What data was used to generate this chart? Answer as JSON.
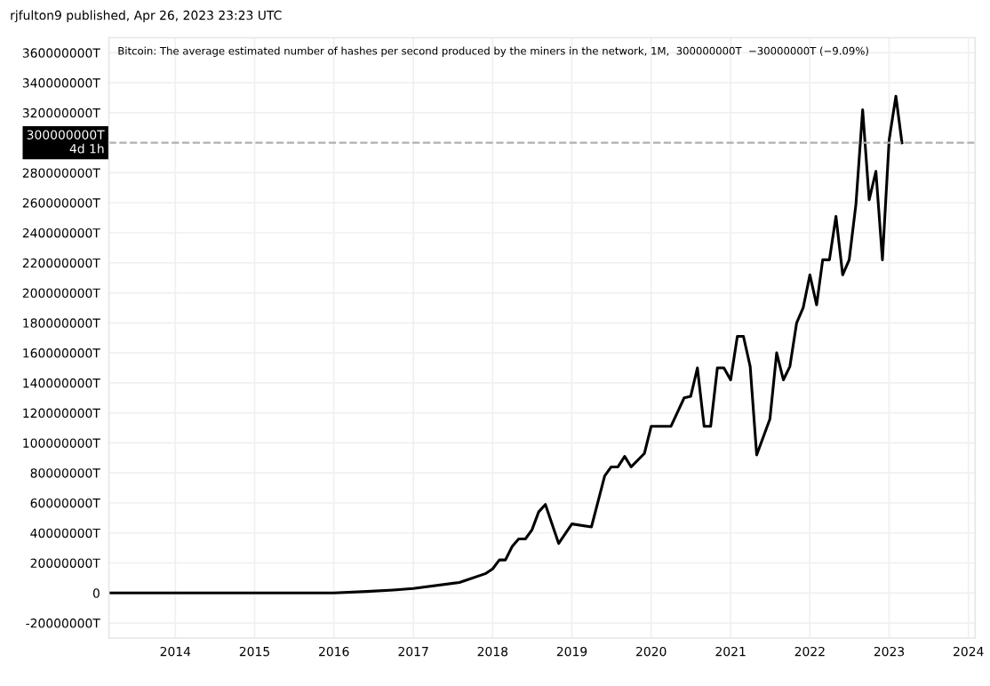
{
  "chart_data": {
    "type": "line",
    "title": "Bitcoin: The average estimated number of hashes per second produced by the miners in the network, 1M,  300000000T  −30000000T (−9.09%)",
    "annotations": [
      "rjfulton9 published, Apr 26, 2023 23:23 UTC"
    ],
    "x": [
      "2013-03",
      "2014-01",
      "2015-01",
      "2016-01",
      "2016-06",
      "2016-10",
      "2017-01",
      "2017-08",
      "2017-12",
      "2018-01",
      "2018-02",
      "2018-03",
      "2018-04",
      "2018-05",
      "2018-06",
      "2018-07",
      "2018-08",
      "2018-09",
      "2018-11",
      "2019-01",
      "2019-04",
      "2019-06",
      "2019-07",
      "2019-08",
      "2019-09",
      "2019-10",
      "2019-12",
      "2020-01",
      "2020-04",
      "2020-06",
      "2020-07",
      "2020-08",
      "2020-09",
      "2020-10",
      "2020-11",
      "2020-12",
      "2021-01",
      "2021-02",
      "2021-03",
      "2021-04",
      "2021-05",
      "2021-07",
      "2021-08",
      "2021-09",
      "2021-10",
      "2021-11",
      "2021-12",
      "2022-01",
      "2022-02",
      "2022-03",
      "2022-04",
      "2022-05",
      "2022-06",
      "2022-07",
      "2022-08",
      "2022-09",
      "2022-10",
      "2022-11",
      "2022-12",
      "2023-01",
      "2023-02",
      "2023-03"
    ],
    "series": [
      {
        "color": "#000000",
        "values": [
          0,
          0,
          0,
          0,
          1000000,
          2000000,
          3000000,
          7000000,
          13000000,
          16000000,
          22000000,
          22000000,
          31000000,
          36000000,
          36000000,
          42000000,
          54000000,
          59000000,
          33000000,
          46000000,
          44000000,
          78000000,
          84000000,
          84000000,
          91000000,
          84000000,
          93000000,
          111000000,
          111000000,
          130000000,
          131000000,
          150000000,
          111000000,
          111000000,
          150000000,
          150000000,
          142000000,
          171000000,
          171000000,
          151000000,
          92000000,
          116000000,
          160000000,
          142000000,
          151000000,
          180000000,
          190000000,
          212000000,
          192000000,
          222000000,
          222000000,
          251000000,
          212000000,
          222000000,
          259000000,
          322000000,
          262000000,
          281000000,
          222000000,
          302000000,
          331000000,
          300000000
        ]
      }
    ],
    "xlim": [
      "2013-03",
      "2024-02"
    ],
    "xticks": [
      "2014",
      "2015",
      "2016",
      "2017",
      "2018",
      "2019",
      "2020",
      "2021",
      "2022",
      "2023",
      "2024"
    ],
    "ylim": [
      -30000000,
      370000000
    ],
    "yticks": [
      {
        "value": -20000000,
        "label": "-20000000T"
      },
      {
        "value": 0,
        "label": "0"
      },
      {
        "value": 20000000,
        "label": "20000000T"
      },
      {
        "value": 40000000,
        "label": "40000000T"
      },
      {
        "value": 60000000,
        "label": "60000000T"
      },
      {
        "value": 80000000,
        "label": "80000000T"
      },
      {
        "value": 100000000,
        "label": "100000000T"
      },
      {
        "value": 120000000,
        "label": "120000000T"
      },
      {
        "value": 140000000,
        "label": "140000000T"
      },
      {
        "value": 160000000,
        "label": "160000000T"
      },
      {
        "value": 180000000,
        "label": "180000000T"
      },
      {
        "value": 200000000,
        "label": "200000000T"
      },
      {
        "value": 220000000,
        "label": "220000000T"
      },
      {
        "value": 240000000,
        "label": "240000000T"
      },
      {
        "value": 260000000,
        "label": "260000000T"
      },
      {
        "value": 280000000,
        "label": "280000000T"
      },
      {
        "value": 320000000,
        "label": "320000000T"
      },
      {
        "value": 340000000,
        "label": "340000000T"
      },
      {
        "value": 360000000,
        "label": "360000000T"
      }
    ],
    "ref_lines": [
      {
        "axis": "y",
        "value": 300000000,
        "label": "300000000T\n4d 1h",
        "color": "#b0b0b0",
        "line_style": "dashed"
      }
    ],
    "grid": true,
    "line_style": "solid",
    "marker": "none",
    "legend": false
  }
}
